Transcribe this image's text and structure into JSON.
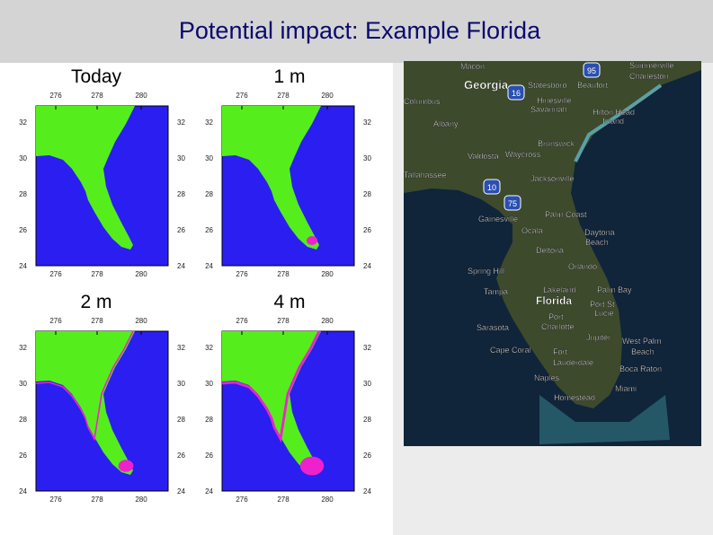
{
  "title": "Potential impact: Example Florida",
  "panels": [
    {
      "label": "Today"
    },
    {
      "label": "1 m"
    },
    {
      "label": "2 m"
    },
    {
      "label": "4 m"
    }
  ],
  "x_ticks": [
    "276",
    "278",
    "280"
  ],
  "y_ticks": [
    "32",
    "30",
    "28",
    "26",
    "24"
  ],
  "satellite": {
    "shields": [
      "95",
      "16",
      "10",
      "75"
    ],
    "places": [
      "Macon",
      "Georgia",
      "Statesboro",
      "Beaufort",
      "Summerville",
      "Charleston",
      "Columbus",
      "Hinesville",
      "Savannah",
      "Hilton Head",
      "Island",
      "Albany",
      "Brunswick",
      "Valdosta",
      "Waycross",
      "Tallahassee",
      "Jacksonville",
      "Gainesville",
      "Palm Coast",
      "Ocala",
      "Daytona",
      "Beach",
      "Deltona",
      "Spring Hill",
      "Orlando",
      "Tampa",
      "Lakeland",
      "Palm Bay",
      "Florida",
      "Port",
      "Charlotte",
      "Port St",
      "Lucie",
      "Sarasota",
      "Jupiter",
      "West Palm",
      "Beach",
      "Cape Coral",
      "Fort",
      "Lauderdale",
      "Boca Raton",
      "Naples",
      "Miami",
      "Homestead"
    ]
  }
}
